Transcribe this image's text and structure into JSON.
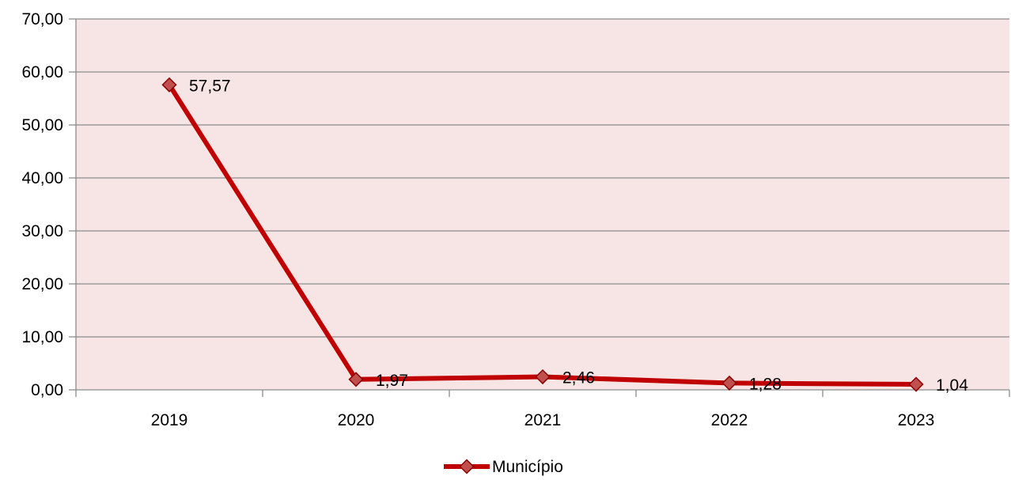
{
  "chart_data": {
    "type": "line",
    "title": "",
    "xlabel": "",
    "ylabel": "",
    "categories": [
      "2019",
      "2020",
      "2021",
      "2022",
      "2023"
    ],
    "series": [
      {
        "name": "Município",
        "values": [
          57.57,
          1.97,
          2.46,
          1.28,
          1.04
        ],
        "labels": [
          "57,57",
          "1,97",
          "2,46",
          "1,28",
          "1,04"
        ],
        "color": "#C00000",
        "marker": "diamond",
        "marker_fill": "#C0504D"
      }
    ],
    "ylim": [
      0,
      70
    ],
    "yticks": [
      0,
      10,
      20,
      30,
      40,
      50,
      60,
      70
    ],
    "ytick_labels": [
      "0,00",
      "10,00",
      "20,00",
      "30,00",
      "40,00",
      "50,00",
      "60,00",
      "70,00"
    ],
    "grid": true,
    "plot_background": "#F7E4E4",
    "legend": {
      "position": "bottom",
      "entries": [
        "Município"
      ]
    }
  }
}
